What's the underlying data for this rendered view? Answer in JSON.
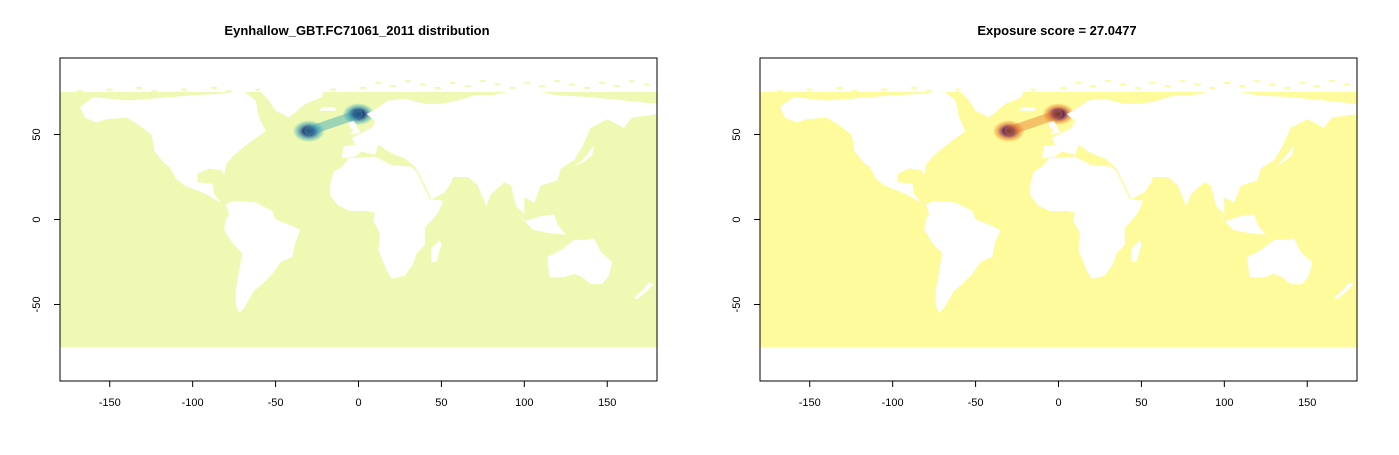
{
  "panels": [
    {
      "id": "distribution",
      "title": "Eynhallow_GBT.FC71061_2011 distribution",
      "palette": {
        "ocean": "#f0f9b4",
        "mid": "#3aa6b8",
        "high": "#1f2f7a",
        "peak": "#0a0d3a",
        "land": "#ffffff"
      }
    },
    {
      "id": "exposure",
      "title": "Exposure score = 27.0477",
      "palette": {
        "ocean": "#fdfb9c",
        "mid": "#e8772a",
        "high": "#5a1a6a",
        "peak": "#0d0a2c",
        "land": "#ffffff"
      }
    }
  ],
  "axes": {
    "x_ticks": [
      "-150",
      "-100",
      "-50",
      "0",
      "50",
      "100",
      "150"
    ],
    "y_ticks": [
      "50",
      "0",
      "-50"
    ],
    "xlim": [
      -180,
      180
    ],
    "ylim": [
      -95,
      95
    ],
    "ocean_lat_range": [
      -75,
      75
    ]
  },
  "hotspots": [
    {
      "lon": -30,
      "lat": 52,
      "intensity": 0.95
    },
    {
      "lon": 0,
      "lat": 62,
      "intensity": 1.0
    }
  ]
}
